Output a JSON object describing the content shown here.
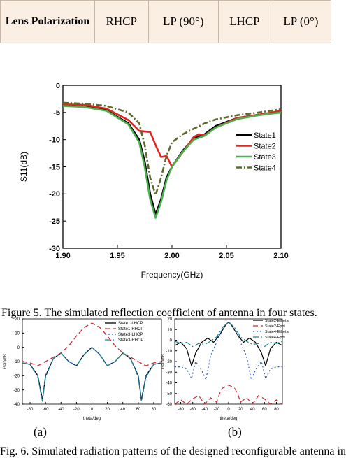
{
  "table": {
    "header": "Lens Polarization",
    "cells": [
      "RHCP",
      "LP (90°)",
      "LHCP",
      "LP (0°)"
    ]
  },
  "chart_data": [
    {
      "type": "line",
      "xlabel": "Frequency(GHz)",
      "ylabel": "S11(dB)",
      "xlim": [
        1.9,
        2.1
      ],
      "ylim": [
        -30,
        0
      ],
      "xticks": [
        "1.90",
        "1.95",
        "2.00",
        "2.05",
        "2.10"
      ],
      "yticks": [
        "0",
        "-5",
        "-10",
        "-15",
        "-20",
        "-25",
        "-30"
      ],
      "legend_position": "right",
      "series": [
        {
          "name": "State1",
          "color": "#000000",
          "dash": "solid",
          "x": [
            1.9,
            1.92,
            1.94,
            1.96,
            1.97,
            1.975,
            1.98,
            1.985,
            1.99,
            1.995,
            2.0,
            2.01,
            2.02,
            2.03,
            2.04,
            2.06,
            2.08,
            2.1
          ],
          "y": [
            -3.6,
            -3.9,
            -4.6,
            -7.0,
            -10.0,
            -14.0,
            -20.0,
            -23.8,
            -21.0,
            -17.0,
            -15.0,
            -12.0,
            -9.8,
            -9.0,
            -7.5,
            -6.0,
            -5.4,
            -4.9
          ]
        },
        {
          "name": "State2",
          "color": "#e2261f",
          "dash": "solid",
          "x": [
            1.9,
            1.92,
            1.94,
            1.96,
            1.97,
            1.98,
            1.985,
            1.99,
            1.995,
            2.0,
            2.01,
            2.02,
            2.025,
            2.03,
            2.04,
            2.06,
            2.08,
            2.1
          ],
          "y": [
            -3.5,
            -3.6,
            -4.3,
            -6.4,
            -8.4,
            -8.6,
            -11.0,
            -13.2,
            -13.0,
            -15.0,
            -12.3,
            -9.5,
            -9.0,
            -9.2,
            -7.8,
            -6.0,
            -5.4,
            -4.7
          ]
        },
        {
          "name": "State3",
          "color": "#4caf50",
          "dash": "solid",
          "x": [
            1.9,
            1.92,
            1.94,
            1.96,
            1.97,
            1.975,
            1.98,
            1.985,
            1.99,
            1.995,
            2.0,
            2.01,
            2.02,
            2.03,
            2.04,
            2.06,
            2.08,
            2.1
          ],
          "y": [
            -3.8,
            -4.0,
            -4.7,
            -7.2,
            -10.5,
            -15.0,
            -21.0,
            -24.4,
            -21.5,
            -17.5,
            -15.0,
            -12.2,
            -10.0,
            -9.3,
            -7.8,
            -6.2,
            -5.5,
            -5.0
          ]
        },
        {
          "name": "State4",
          "color": "#5d6a2a",
          "dash": "dashdot",
          "x": [
            1.9,
            1.92,
            1.94,
            1.96,
            1.97,
            1.975,
            1.98,
            1.985,
            1.99,
            1.995,
            2.0,
            2.01,
            2.02,
            2.03,
            2.04,
            2.06,
            2.08,
            2.1
          ],
          "y": [
            -3.2,
            -3.4,
            -3.8,
            -5.0,
            -7.0,
            -11.0,
            -17.0,
            -20.2,
            -17.0,
            -13.0,
            -10.5,
            -9.0,
            -8.0,
            -7.0,
            -6.3,
            -5.5,
            -5.0,
            -4.4
          ]
        }
      ]
    },
    {
      "type": "line",
      "panel": "(a)",
      "xlabel": "theta/deg",
      "ylabel": "Gain/dB",
      "xlim": [
        -90,
        90
      ],
      "ylim": [
        -40,
        20
      ],
      "xticks": [
        "-80",
        "-60",
        "-40",
        "-20",
        "0",
        "20",
        "40",
        "60",
        "80"
      ],
      "yticks": [
        "20",
        "10",
        "0",
        "-10",
        "-20",
        "-30",
        "-40"
      ],
      "legend_position": "top-right",
      "series": [
        {
          "name": "State1-LHCP",
          "color": "#000000",
          "dash": "solid",
          "x": [
            -90,
            -80,
            -70,
            -64,
            -60,
            -50,
            -40,
            -30,
            -20,
            -10,
            0,
            10,
            20,
            30,
            40,
            50,
            60,
            64,
            70,
            80,
            90
          ],
          "y": [
            -11,
            -12,
            -20,
            -37,
            -20,
            -8,
            -4,
            -10,
            -13,
            -5,
            0,
            -5,
            -13,
            -10,
            -4,
            -8,
            -20,
            -37,
            -20,
            -12,
            -11
          ]
        },
        {
          "name": "State1-RHCP",
          "color": "#cc2a36",
          "dash": "dash",
          "x": [
            -90,
            -80,
            -70,
            -60,
            -50,
            -40,
            -30,
            -20,
            -10,
            0,
            10,
            20,
            30,
            40,
            50,
            60,
            70,
            80,
            90
          ],
          "y": [
            -10,
            -11,
            -13,
            -10,
            -7,
            -4,
            1,
            8,
            14,
            17,
            14,
            8,
            1,
            -4,
            -7,
            -10,
            -13,
            -11,
            -10
          ]
        },
        {
          "name": "State3-LHCP",
          "color": "#2b57c7",
          "dash": "dot",
          "x": [
            -90,
            -80,
            -70,
            -64,
            -60,
            -50,
            -40,
            -30,
            -20,
            -10,
            0,
            10,
            20,
            30,
            40,
            50,
            60,
            64,
            70,
            80,
            90
          ],
          "y": [
            -11,
            -12,
            -20,
            -36,
            -20,
            -8,
            -4,
            -10,
            -13,
            -5,
            0,
            -5,
            -13,
            -10,
            -4,
            -8,
            -20,
            -36,
            -20,
            -12,
            -11
          ]
        },
        {
          "name": "State3-RHCP",
          "color": "#1a8a8a",
          "dash": "dashdot",
          "x": [
            -90,
            -80,
            -70,
            -64,
            -60,
            -50,
            -40,
            -30,
            -20,
            -10,
            0,
            10,
            20,
            30,
            40,
            50,
            60,
            64,
            70,
            80,
            90
          ],
          "y": [
            -11,
            -12,
            -21,
            -38,
            -21,
            -8,
            -4,
            -10,
            -13,
            -5,
            0,
            -5,
            -13,
            -10,
            -4,
            -8,
            -21,
            -38,
            -21,
            -12,
            -11
          ]
        }
      ]
    },
    {
      "type": "line",
      "panel": "(b)",
      "xlabel": "theta/deg",
      "ylabel": "Gain/dB",
      "xlim": [
        -90,
        90
      ],
      "ylim": [
        -60,
        20
      ],
      "xticks": [
        "-80",
        "-60",
        "-40",
        "-20",
        "0",
        "20",
        "40",
        "60",
        "80"
      ],
      "yticks": [
        "20",
        "10",
        "0",
        "-10",
        "-20",
        "-30",
        "-40",
        "-50",
        "-60"
      ],
      "legend_position": "top-right",
      "series": [
        {
          "name": "State2-Etheta",
          "color": "#000000",
          "dash": "solid",
          "x": [
            -90,
            -80,
            -70,
            -62,
            -55,
            -45,
            -35,
            -25,
            -15,
            -5,
            0,
            5,
            15,
            25,
            35,
            45,
            55,
            62,
            70,
            80,
            90
          ],
          "y": [
            -5,
            -2,
            -8,
            -24,
            -12,
            -2,
            2,
            -2,
            5,
            14,
            17,
            14,
            5,
            -2,
            2,
            -2,
            -12,
            -24,
            -8,
            -2,
            -5
          ]
        },
        {
          "name": "State2-Ephi",
          "color": "#cc2a36",
          "dash": "dash",
          "x": [
            -90,
            -80,
            -70,
            -60,
            -50,
            -40,
            -30,
            -20,
            -15,
            -10,
            0,
            10,
            15,
            20,
            30,
            40,
            50,
            60,
            70,
            80,
            90
          ],
          "y": [
            -60,
            -56,
            -60,
            -55,
            -52,
            -60,
            -54,
            -58,
            -50,
            -45,
            -42,
            -45,
            -50,
            -58,
            -54,
            -60,
            -52,
            -55,
            -60,
            -56,
            -60
          ]
        },
        {
          "name": "State4-Etheta",
          "color": "#2b57c7",
          "dash": "dot",
          "x": [
            -90,
            -80,
            -70,
            -62,
            -55,
            -45,
            -38,
            -30,
            -20,
            -10,
            0,
            10,
            20,
            30,
            38,
            45,
            55,
            62,
            70,
            80,
            90
          ],
          "y": [
            -25,
            -25,
            -27,
            -36,
            -20,
            -28,
            -37,
            -15,
            -2,
            12,
            17,
            12,
            -2,
            -15,
            -37,
            -28,
            -20,
            -36,
            -27,
            -25,
            -25
          ]
        },
        {
          "name": "State4-Ephi",
          "color": "#1a8a8a",
          "dash": "dashdot",
          "x": [
            -90,
            -80,
            -70,
            -60,
            -50,
            -40,
            -30,
            -20,
            -10,
            0,
            10,
            20,
            30,
            40,
            50,
            60,
            70,
            80,
            90
          ],
          "y": [
            -1,
            -3,
            -2,
            -6,
            -3,
            -4,
            -1,
            3,
            12,
            17,
            12,
            3,
            -1,
            -4,
            -3,
            -6,
            -2,
            -3,
            -1
          ]
        }
      ]
    }
  ],
  "captions": {
    "fig5": "Figure 5. The simulated reflection coefficient of antenna in four states.",
    "sub_a": "(a)",
    "sub_b": "(b)",
    "fig6": "Fig. 6. Simulated radiation patterns of the designed reconfigurable antenna in"
  }
}
